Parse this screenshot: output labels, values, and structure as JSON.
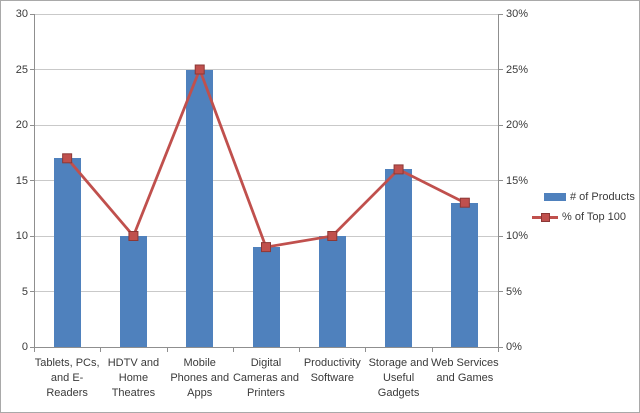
{
  "chart_data": {
    "type": "bar",
    "subtype": "combo-bar-line",
    "title": "",
    "categories": [
      [
        "Tablets, PCs,",
        "and E-Readers"
      ],
      [
        "HDTV and",
        "Home",
        "Theatres"
      ],
      [
        "Mobile",
        "Phones and",
        "Apps"
      ],
      [
        "Digital",
        "Cameras and",
        "Printers"
      ],
      [
        "Productivity",
        "Software"
      ],
      [
        "Storage and",
        "Useful",
        "Gadgets"
      ],
      [
        "Web Services",
        "and Games"
      ]
    ],
    "series": [
      {
        "name": "# of Products",
        "type": "bar",
        "axis": "left",
        "values": [
          17,
          10,
          25,
          9,
          10,
          16,
          13
        ]
      },
      {
        "name": "% of Top 100",
        "type": "line",
        "axis": "right",
        "values": [
          17,
          10,
          25,
          9,
          10,
          16,
          13
        ],
        "unit": "%"
      }
    ],
    "left_axis": {
      "min": 0,
      "max": 30,
      "step": 5,
      "tick_labels": [
        "0",
        "5",
        "10",
        "15",
        "20",
        "25",
        "30"
      ]
    },
    "right_axis": {
      "min": 0,
      "max": 30,
      "step": 5,
      "tick_labels": [
        "0%",
        "5%",
        "10%",
        "15%",
        "20%",
        "25%",
        "30%"
      ]
    },
    "legend": {
      "position": "right",
      "entries": [
        "# of Products",
        "% of Top 100"
      ]
    },
    "grid": true,
    "colors": {
      "bar": "#4f81bd",
      "line": "#c0504d",
      "marker_border": "#8c3836",
      "gridline": "#c9c9c9",
      "axis": "#8f8f8f",
      "text": "#3a3a3a"
    }
  }
}
